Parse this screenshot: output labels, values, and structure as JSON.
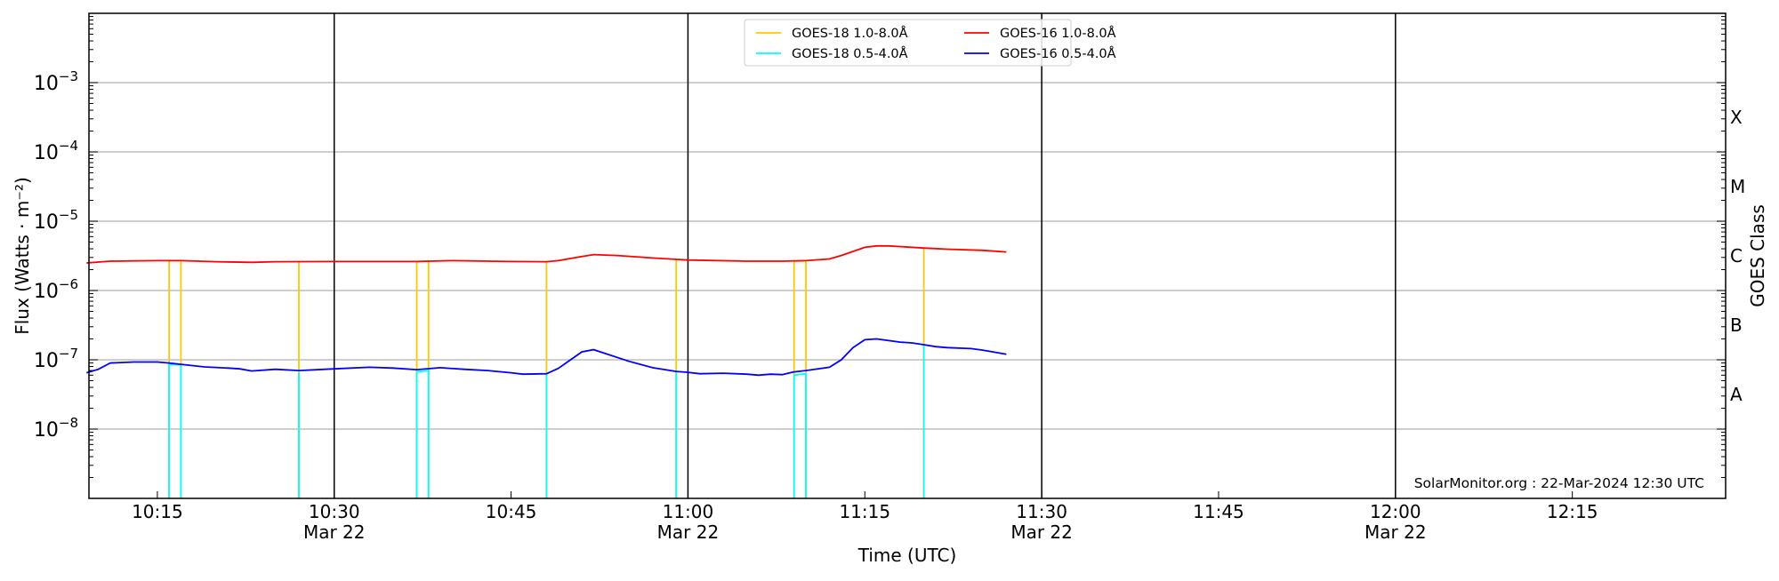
{
  "chart_data": {
    "type": "line",
    "title": "",
    "xlabel": "Time (UTC)",
    "ylabel": "Flux (Watts · m⁻²)",
    "ylabel_right": "GOES Class",
    "y_scale": "log",
    "ylim": [
      1e-09,
      0.01
    ],
    "xlim": [
      "10:09",
      "12:28"
    ],
    "grid": "horizontal at decades",
    "x_ticks": [
      {
        "time": "10:15",
        "label": "10:15",
        "sublabel": ""
      },
      {
        "time": "10:30",
        "label": "10:30",
        "sublabel": "Mar 22"
      },
      {
        "time": "10:45",
        "label": "10:45",
        "sublabel": ""
      },
      {
        "time": "11:00",
        "label": "11:00",
        "sublabel": "Mar 22"
      },
      {
        "time": "11:15",
        "label": "11:15",
        "sublabel": ""
      },
      {
        "time": "11:30",
        "label": "11:30",
        "sublabel": "Mar 22"
      },
      {
        "time": "11:45",
        "label": "11:45",
        "sublabel": ""
      },
      {
        "time": "12:00",
        "label": "12:00",
        "sublabel": "Mar 22"
      },
      {
        "time": "12:15",
        "label": "12:15",
        "sublabel": ""
      }
    ],
    "y_ticks": [
      {
        "exp": -3,
        "label": "10",
        "sup": "−3"
      },
      {
        "exp": -4,
        "label": "10",
        "sup": "−4"
      },
      {
        "exp": -5,
        "label": "10",
        "sup": "−5"
      },
      {
        "exp": -6,
        "label": "10",
        "sup": "−6"
      },
      {
        "exp": -7,
        "label": "10",
        "sup": "−7"
      },
      {
        "exp": -8,
        "label": "10",
        "sup": "−8"
      }
    ],
    "vertical_lines": [
      "10:30",
      "11:00",
      "11:30",
      "12:00"
    ],
    "goes_classes": [
      {
        "label": "X",
        "exp": -3.5
      },
      {
        "label": "M",
        "exp": -4.5
      },
      {
        "label": "C",
        "exp": -5.5
      },
      {
        "label": "B",
        "exp": -6.5
      },
      {
        "label": "A",
        "exp": -7.5
      }
    ],
    "legend_placement": "top-center",
    "annotation": "SolarMonitor.org : 22-Mar-2024 12:30 UTC",
    "series": [
      {
        "name": "GOES-18 1.0-8.0Å",
        "color": "#ffc800",
        "style": "spikes",
        "points": [
          [
            "10:16",
            2.7e-06
          ],
          [
            "10:17",
            2.7e-06
          ],
          [
            "10:27",
            2.6e-06
          ],
          [
            "10:37",
            2.62e-06
          ],
          [
            "10:38",
            2.65e-06
          ],
          [
            "10:48",
            2.6e-06
          ],
          [
            "10:59",
            2.75e-06
          ],
          [
            "11:09",
            2.65e-06
          ],
          [
            "11:10",
            2.68e-06
          ],
          [
            "11:20",
            4.1e-06
          ]
        ]
      },
      {
        "name": "GOES-18 0.5-4.0Å",
        "color": "#00ffff",
        "style": "spikes",
        "points": [
          [
            "10:16",
            8.5e-08
          ],
          [
            "10:17",
            8.5e-08
          ],
          [
            "10:27",
            6.5e-08
          ],
          [
            "10:37",
            6.7e-08
          ],
          [
            "10:38",
            7e-08
          ],
          [
            "10:48",
            6.2e-08
          ],
          [
            "10:59",
            6.8e-08
          ],
          [
            "11:09",
            6e-08
          ],
          [
            "11:10",
            6.3e-08
          ],
          [
            "11:20",
            1.65e-07
          ]
        ]
      },
      {
        "name": "GOES-16 1.0-8.0Å",
        "color": "#ff0000",
        "style": "line",
        "points": [
          [
            "10:09",
            2.5e-06
          ],
          [
            "10:11",
            2.65e-06
          ],
          [
            "10:15",
            2.7e-06
          ],
          [
            "10:17",
            2.7e-06
          ],
          [
            "10:20",
            2.6e-06
          ],
          [
            "10:23",
            2.55e-06
          ],
          [
            "10:25",
            2.6e-06
          ],
          [
            "10:30",
            2.62e-06
          ],
          [
            "10:37",
            2.62e-06
          ],
          [
            "10:40",
            2.7e-06
          ],
          [
            "10:45",
            2.62e-06
          ],
          [
            "10:48",
            2.6e-06
          ],
          [
            "10:49",
            2.7e-06
          ],
          [
            "10:51",
            3.1e-06
          ],
          [
            "10:52",
            3.3e-06
          ],
          [
            "10:54",
            3.2e-06
          ],
          [
            "10:57",
            2.95e-06
          ],
          [
            "11:00",
            2.75e-06
          ],
          [
            "11:05",
            2.65e-06
          ],
          [
            "11:08",
            2.65e-06
          ],
          [
            "11:10",
            2.7e-06
          ],
          [
            "11:12",
            2.85e-06
          ],
          [
            "11:13",
            3.2e-06
          ],
          [
            "11:15",
            4.2e-06
          ],
          [
            "11:16",
            4.4e-06
          ],
          [
            "11:17",
            4.4e-06
          ],
          [
            "11:20",
            4.1e-06
          ],
          [
            "11:22",
            3.95e-06
          ],
          [
            "11:25",
            3.8e-06
          ],
          [
            "11:27",
            3.6e-06
          ]
        ]
      },
      {
        "name": "GOES-16 0.5-4.0Å",
        "color": "#0000ff",
        "style": "line",
        "points": [
          [
            "10:09",
            6.5e-08
          ],
          [
            "10:10",
            7.3e-08
          ],
          [
            "10:11",
            9e-08
          ],
          [
            "10:13",
            9.3e-08
          ],
          [
            "10:15",
            9.3e-08
          ],
          [
            "10:16",
            9e-08
          ],
          [
            "10:17",
            8.6e-08
          ],
          [
            "10:19",
            7.9e-08
          ],
          [
            "10:21",
            7.6e-08
          ],
          [
            "10:22",
            7.4e-08
          ],
          [
            "10:23",
            6.9e-08
          ],
          [
            "10:25",
            7.3e-08
          ],
          [
            "10:27",
            7e-08
          ],
          [
            "10:30",
            7.4e-08
          ],
          [
            "10:33",
            7.8e-08
          ],
          [
            "10:35",
            7.6e-08
          ],
          [
            "10:37",
            7.2e-08
          ],
          [
            "10:39",
            7.7e-08
          ],
          [
            "10:41",
            7.3e-08
          ],
          [
            "10:43",
            7e-08
          ],
          [
            "10:45",
            6.5e-08
          ],
          [
            "10:46",
            6.2e-08
          ],
          [
            "10:48",
            6.3e-08
          ],
          [
            "10:49",
            7.5e-08
          ],
          [
            "10:51",
            1.3e-07
          ],
          [
            "10:52",
            1.4e-07
          ],
          [
            "10:55",
            9.5e-08
          ],
          [
            "10:57",
            7.7e-08
          ],
          [
            "10:59",
            6.8e-08
          ],
          [
            "11:00",
            6.6e-08
          ],
          [
            "11:01",
            6.3e-08
          ],
          [
            "11:03",
            6.4e-08
          ],
          [
            "11:05",
            6.2e-08
          ],
          [
            "11:06",
            6e-08
          ],
          [
            "11:07",
            6.2e-08
          ],
          [
            "11:08",
            6.1e-08
          ],
          [
            "11:09",
            6.7e-08
          ],
          [
            "11:10",
            7e-08
          ],
          [
            "11:12",
            7.8e-08
          ],
          [
            "11:13",
            1e-07
          ],
          [
            "11:14",
            1.5e-07
          ],
          [
            "11:15",
            1.95e-07
          ],
          [
            "11:16",
            2e-07
          ],
          [
            "11:18",
            1.8e-07
          ],
          [
            "11:19",
            1.75e-07
          ],
          [
            "11:20",
            1.65e-07
          ],
          [
            "11:21",
            1.55e-07
          ],
          [
            "11:22",
            1.5e-07
          ],
          [
            "11:24",
            1.45e-07
          ],
          [
            "11:25",
            1.38e-07
          ],
          [
            "11:27",
            1.2e-07
          ]
        ]
      }
    ]
  }
}
